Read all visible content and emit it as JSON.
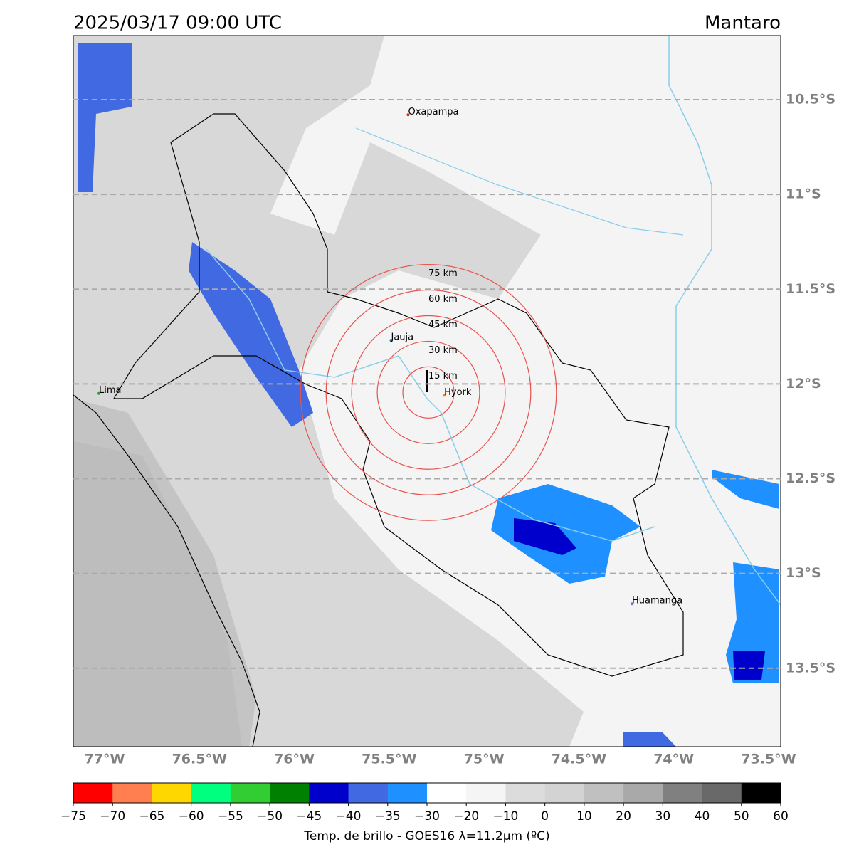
{
  "title": "2025/03/17 09:00 UTC",
  "region": "Mantaro",
  "map": {
    "xlim": [
      -77.165,
      -73.436
    ],
    "ylim": [
      -13.914,
      -10.162
    ],
    "xticks": [
      {
        "value": -77,
        "label": "77°W"
      },
      {
        "value": -76.5,
        "label": "76.5°W"
      },
      {
        "value": -76,
        "label": "76°W"
      },
      {
        "value": -75.5,
        "label": "75.5°W"
      },
      {
        "value": -75,
        "label": "75°W"
      },
      {
        "value": -74.5,
        "label": "74.5°W"
      },
      {
        "value": -74,
        "label": "74°W"
      },
      {
        "value": -73.5,
        "label": "73.5°W"
      }
    ],
    "yticks": [
      {
        "value": -10.5,
        "label": "10.5°S"
      },
      {
        "value": -11,
        "label": "11°S"
      },
      {
        "value": -11.5,
        "label": "11.5°S"
      },
      {
        "value": -12,
        "label": "12°S"
      },
      {
        "value": -12.5,
        "label": "12.5°S"
      },
      {
        "value": -13,
        "label": "13°S"
      },
      {
        "value": -13.5,
        "label": "13.5°S"
      }
    ],
    "grid": true,
    "cities": [
      {
        "name": "Oxapampa",
        "lon": -75.4,
        "lat": -10.58,
        "color": "#d62728"
      },
      {
        "name": "Jauja",
        "lon": -75.49,
        "lat": -11.77,
        "color": "#1f77b4"
      },
      {
        "name": "Lima",
        "lon": -77.03,
        "lat": -12.05,
        "color": "#2ca02c"
      },
      {
        "name": "Hyork",
        "lon": -75.21,
        "lat": -12.06,
        "color": "#ff7f0e"
      },
      {
        "name": "Huamanga",
        "lon": -74.22,
        "lat": -13.16,
        "color": "#9467bd"
      }
    ],
    "rings": {
      "center_lon": -75.293,
      "center_lat": -12.045,
      "color": "#e8534f",
      "radii": [
        {
          "value": 15,
          "label": "15 km"
        },
        {
          "value": 30,
          "label": "30 km"
        },
        {
          "value": 45,
          "label": "45 km"
        },
        {
          "value": 60,
          "label": "60 km"
        },
        {
          "value": 75,
          "label": "75 km"
        }
      ]
    }
  },
  "colorbar": {
    "label": "Temp. de brillo - GOES16 λ=11.2μm (ºC)",
    "ticks": [
      {
        "value": -75,
        "label": "−75"
      },
      {
        "value": -70,
        "label": "−70"
      },
      {
        "value": -65,
        "label": "−65"
      },
      {
        "value": -60,
        "label": "−60"
      },
      {
        "value": -55,
        "label": "−55"
      },
      {
        "value": -50,
        "label": "−50"
      },
      {
        "value": -45,
        "label": "−45"
      },
      {
        "value": -40,
        "label": "−40"
      },
      {
        "value": -35,
        "label": "−35"
      },
      {
        "value": -30,
        "label": "−30"
      },
      {
        "value": -20,
        "label": "−20"
      },
      {
        "value": -10,
        "label": "−10"
      },
      0,
      10,
      20,
      30,
      40,
      50,
      60
    ],
    "colors": [
      "#ff0000",
      "#ff7f50",
      "#ffd700",
      "#00ff7f",
      "#32cd32",
      "#008000",
      "#0000cd",
      "#4169e1",
      "#1e90ff",
      "#ffffff",
      "#f5f5f5",
      "#dcdcdc",
      "#d3d3d3",
      "#c0c0c0",
      "#a9a9a9",
      "#808080",
      "#696969",
      "#000000"
    ]
  }
}
